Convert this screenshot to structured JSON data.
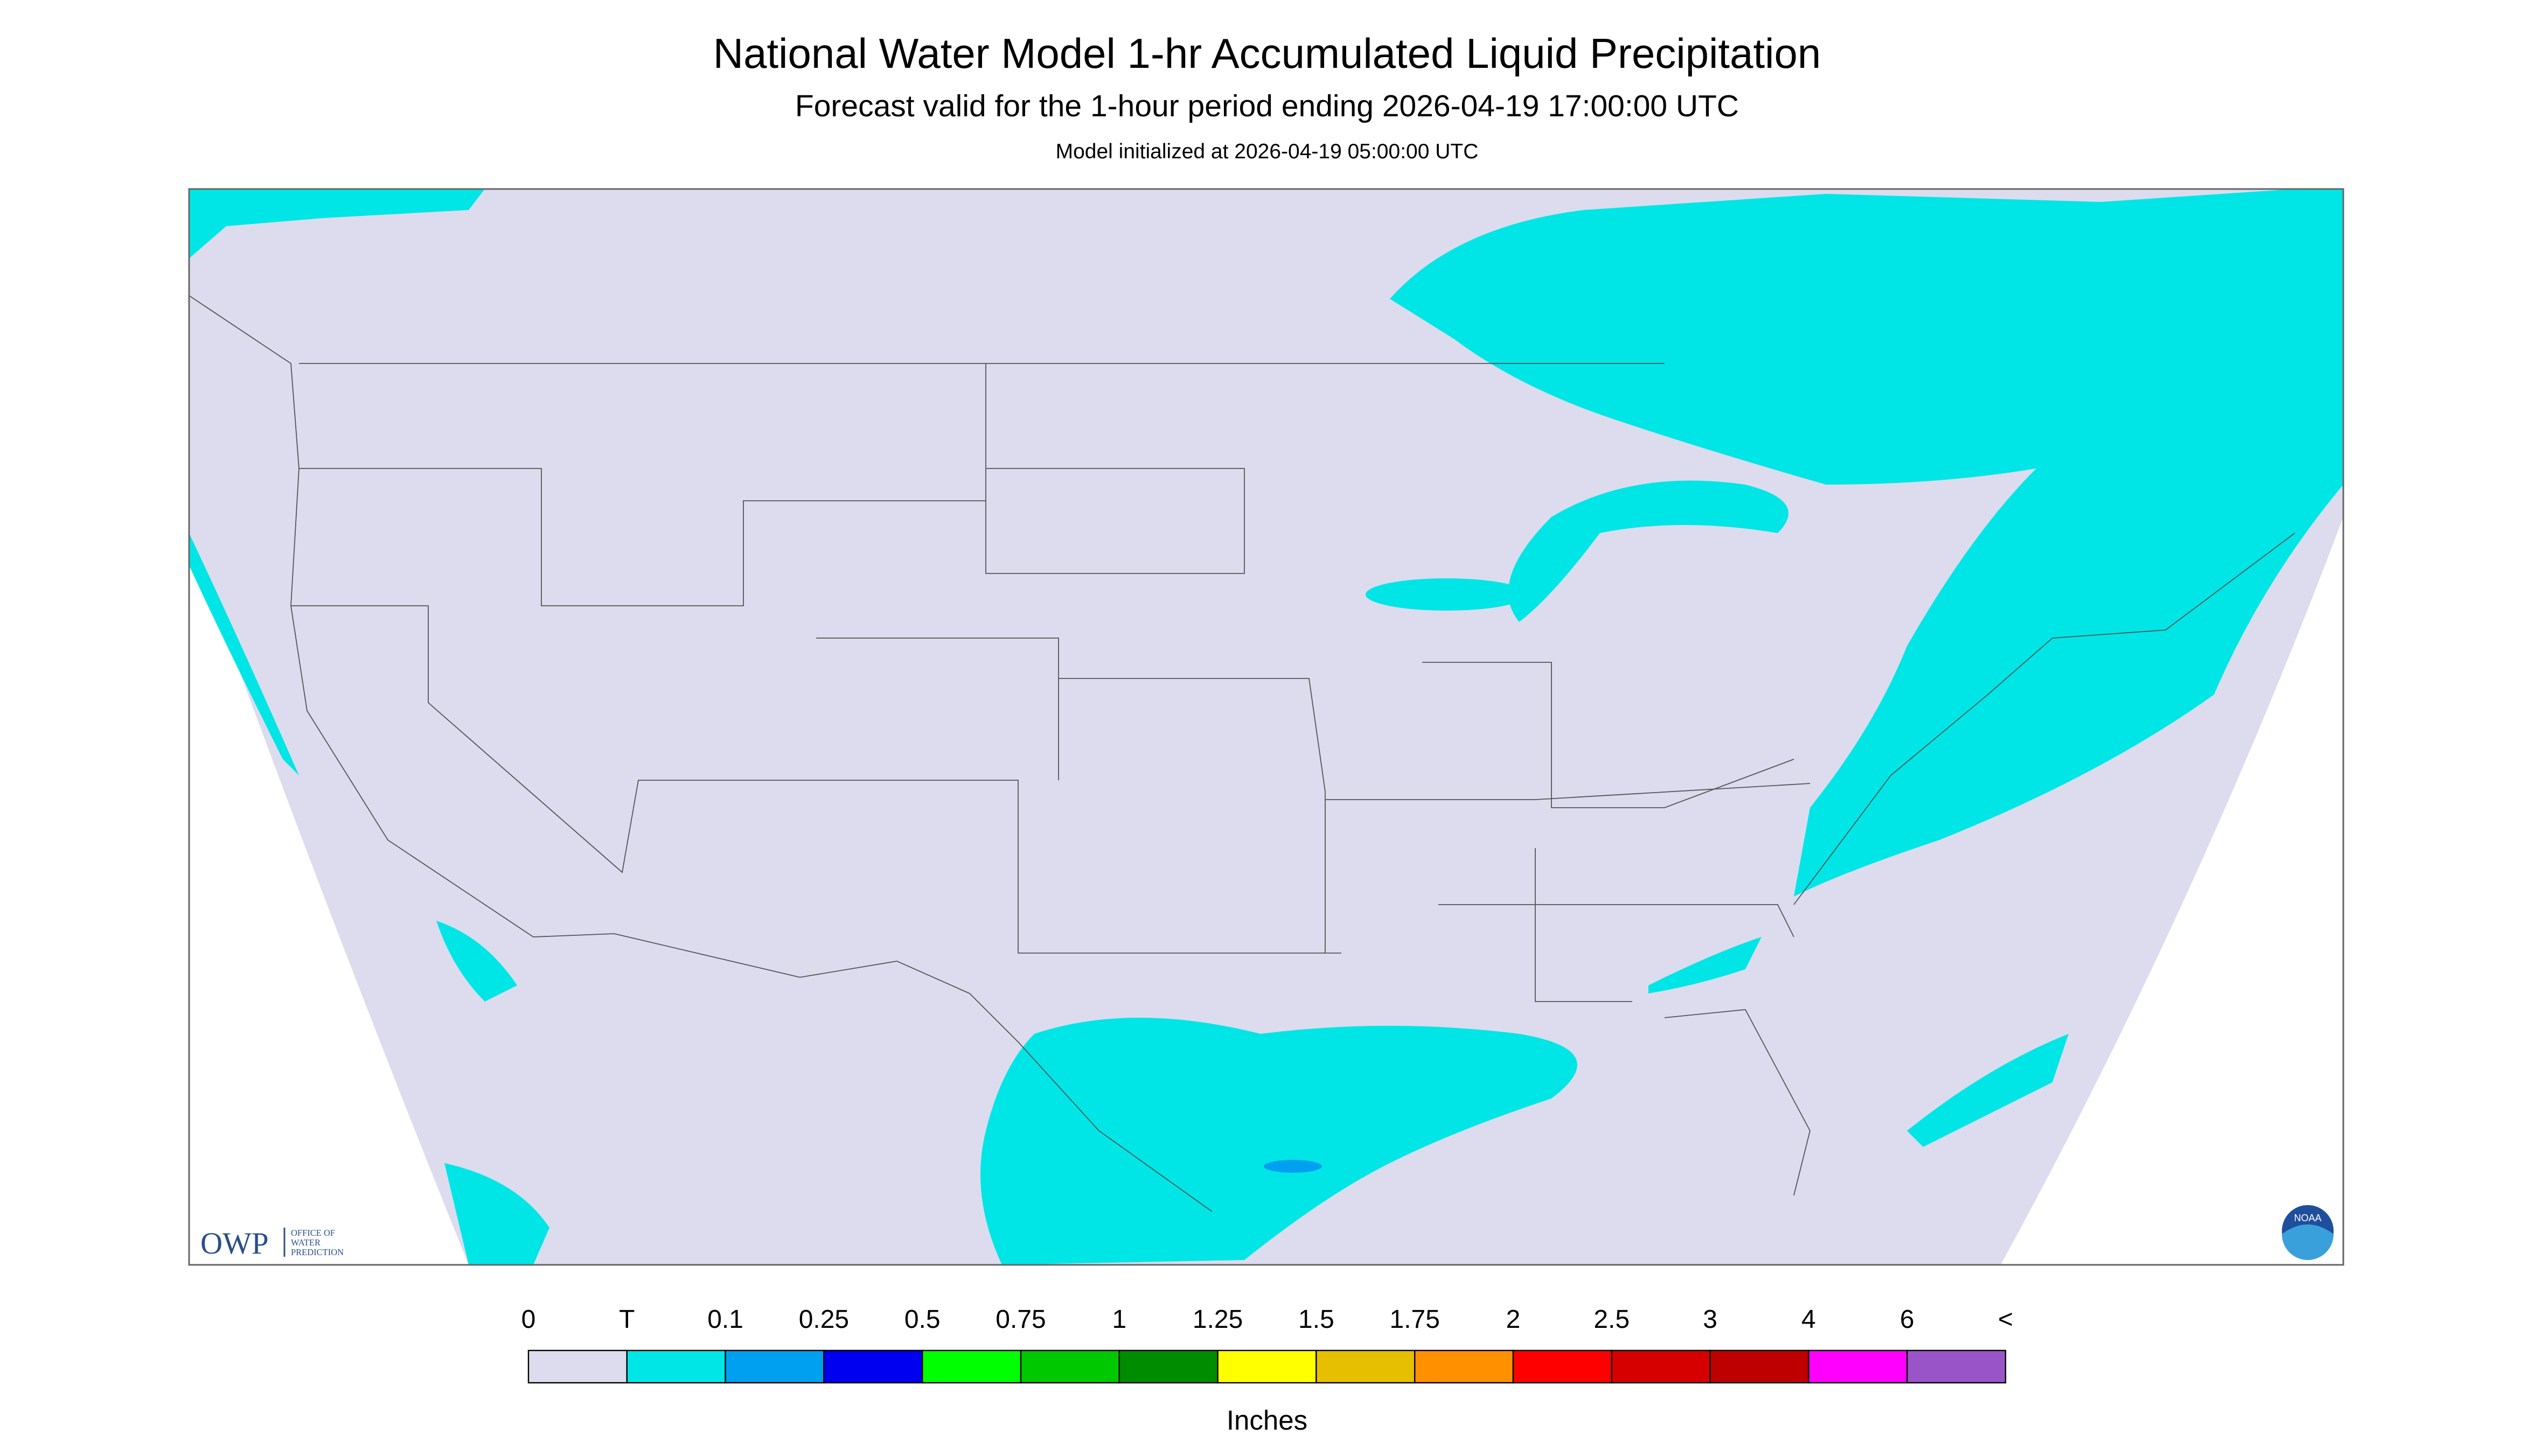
{
  "header": {
    "title": "National Water Model 1-hr Accumulated Liquid Precipitation",
    "subtitle": "Forecast valid for the 1-hour period ending 2026-04-19 17:00:00 UTC",
    "init": "Model initialized at 2026-04-19 05:00:00 UTC"
  },
  "logo": {
    "abbr": "OWP",
    "name": [
      "OFFICE OF",
      "WATER",
      "PREDICTION"
    ],
    "noaa": "NOAA"
  },
  "legend": {
    "labels": [
      "0",
      "T",
      "0.1",
      "0.25",
      "0.5",
      "0.75",
      "1",
      "1.25",
      "1.5",
      "1.75",
      "2",
      "2.5",
      "3",
      "4",
      "6",
      "<"
    ],
    "colors": [
      "#dcdcee",
      "#00e6e6",
      "#00a0f0",
      "#0000f0",
      "#00ff00",
      "#00c800",
      "#008c00",
      "#ffff00",
      "#e6bf00",
      "#ff9000",
      "#ff0000",
      "#d60000",
      "#bf0000",
      "#ff00ff",
      "#9955c8"
    ],
    "unit": "Inches"
  }
}
